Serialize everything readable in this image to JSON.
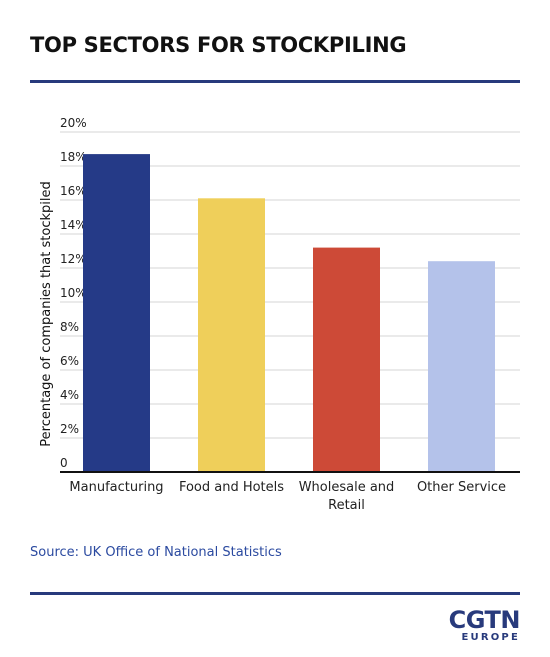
{
  "title": "TOP SECTORS FOR STOCKPILING",
  "source": "Source: UK Office of National Statistics",
  "logo": {
    "main": "CGTN",
    "sub": "EUROPE"
  },
  "colors": {
    "accent": "#283a7c",
    "bars": [
      "#253a87",
      "#efcf5a",
      "#cd4a37",
      "#b4c2ea"
    ]
  },
  "chart_data": {
    "type": "bar",
    "categories": [
      [
        "Manufacturing"
      ],
      [
        "Food and Hotels"
      ],
      [
        "Wholesale and",
        "Retail"
      ],
      [
        "Other Service"
      ]
    ],
    "values": [
      18.7,
      16.1,
      13.2,
      12.4
    ],
    "ylabel": "Percentage of companies that stockpiled",
    "ylim": [
      0,
      20
    ],
    "yticks": [
      0,
      2,
      4,
      6,
      8,
      10,
      12,
      14,
      16,
      18,
      20
    ],
    "ytick_labels": [
      "0",
      "2%",
      "4%",
      "6%",
      "8%",
      "10%",
      "12%",
      "14%",
      "16%",
      "18%",
      "20%"
    ],
    "grid": true
  }
}
